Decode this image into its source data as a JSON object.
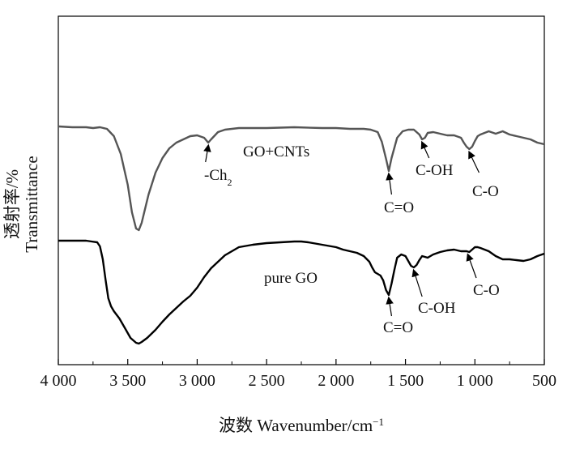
{
  "chart_data": {
    "type": "line",
    "title": "",
    "xlabel": "波数 Wavenumber/cm",
    "xlabel_sup": "−1",
    "ylabel": "透射率/% Transmittance",
    "xlim": [
      4000,
      500
    ],
    "x_reversed": true,
    "y_ticks_shown": false,
    "x_ticks": [
      4000,
      3500,
      3000,
      2500,
      2000,
      1500,
      1000,
      500
    ],
    "x_tick_labels": [
      "4 000",
      "3 500",
      "3 000",
      "2 500",
      "2 000",
      "1 500",
      "1 000",
      "500"
    ],
    "series": [
      {
        "name": "GO+CNTs",
        "color": "#555555",
        "x": [
          4000,
          3900,
          3800,
          3750,
          3700,
          3650,
          3600,
          3550,
          3500,
          3470,
          3440,
          3420,
          3400,
          3350,
          3300,
          3250,
          3200,
          3150,
          3100,
          3050,
          3000,
          2950,
          2920,
          2900,
          2850,
          2800,
          2700,
          2500,
          2300,
          2100,
          2000,
          1900,
          1800,
          1750,
          1700,
          1670,
          1640,
          1620,
          1600,
          1560,
          1520,
          1480,
          1440,
          1400,
          1380,
          1360,
          1340,
          1300,
          1250,
          1200,
          1150,
          1100,
          1080,
          1060,
          1040,
          1020,
          1000,
          980,
          960,
          900,
          850,
          800,
          750,
          700,
          650,
          600,
          550,
          500
        ],
        "y": [
          156,
          157,
          157,
          158,
          157,
          159,
          168,
          190,
          228,
          262,
          282,
          284,
          275,
          240,
          213,
          195,
          183,
          176,
          172,
          168,
          167,
          170,
          176,
          172,
          163,
          160,
          158,
          158,
          157,
          158,
          158,
          159,
          159,
          160,
          163,
          175,
          196,
          211,
          195,
          170,
          162,
          160,
          160,
          166,
          172,
          170,
          164,
          163,
          165,
          167,
          167,
          170,
          176,
          181,
          184,
          181,
          174,
          168,
          166,
          162,
          165,
          162,
          166,
          168,
          170,
          172,
          176,
          178
        ]
      },
      {
        "name": "pure GO",
        "color": "#000000",
        "x": [
          4000,
          3900,
          3800,
          3760,
          3720,
          3700,
          3680,
          3660,
          3640,
          3620,
          3600,
          3560,
          3520,
          3480,
          3440,
          3420,
          3400,
          3360,
          3300,
          3250,
          3200,
          3150,
          3100,
          3050,
          3000,
          2950,
          2900,
          2800,
          2700,
          2600,
          2500,
          2400,
          2300,
          2250,
          2200,
          2100,
          2000,
          1950,
          1900,
          1850,
          1800,
          1760,
          1740,
          1720,
          1700,
          1680,
          1660,
          1640,
          1620,
          1600,
          1580,
          1560,
          1530,
          1500,
          1480,
          1460,
          1440,
          1420,
          1400,
          1380,
          1360,
          1340,
          1320,
          1300,
          1250,
          1200,
          1150,
          1100,
          1060,
          1040,
          1020,
          1000,
          980,
          960,
          900,
          850,
          800,
          750,
          700,
          650,
          600,
          550,
          500
        ],
        "y": [
          297,
          297,
          297,
          298,
          299,
          304,
          320,
          345,
          368,
          378,
          384,
          393,
          405,
          417,
          423,
          424,
          422,
          417,
          407,
          397,
          388,
          380,
          372,
          365,
          355,
          342,
          331,
          315,
          305,
          302,
          300,
          299,
          298,
          298,
          299,
          302,
          305,
          308,
          310,
          312,
          316,
          323,
          330,
          336,
          338,
          340,
          346,
          358,
          364,
          350,
          333,
          318,
          314,
          316,
          322,
          328,
          330,
          327,
          321,
          316,
          317,
          318,
          316,
          314,
          311,
          309,
          308,
          310,
          310,
          311,
          308,
          305,
          305,
          306,
          310,
          316,
          320,
          320,
          321,
          322,
          320,
          316,
          313
        ]
      }
    ],
    "annotations": [
      {
        "id": "ch2",
        "text": "-Ch",
        "sub": "2",
        "series": "GO+CNTs",
        "x": 2920
      },
      {
        "id": "co1",
        "text": "C=O",
        "series": "GO+CNTs",
        "x": 1620
      },
      {
        "id": "coh1",
        "text": "C-OH",
        "series": "GO+CNTs",
        "x": 1380
      },
      {
        "id": "c_o1",
        "text": "C-O",
        "series": "GO+CNTs",
        "x": 1040
      },
      {
        "id": "co2",
        "text": "C=O",
        "series": "pure GO",
        "x": 1620
      },
      {
        "id": "coh2",
        "text": "C-OH",
        "series": "pure GO",
        "x": 1440
      },
      {
        "id": "c_o2",
        "text": "C-O",
        "series": "pure GO",
        "x": 1050
      }
    ],
    "grid": false,
    "legend": "inline labels"
  }
}
